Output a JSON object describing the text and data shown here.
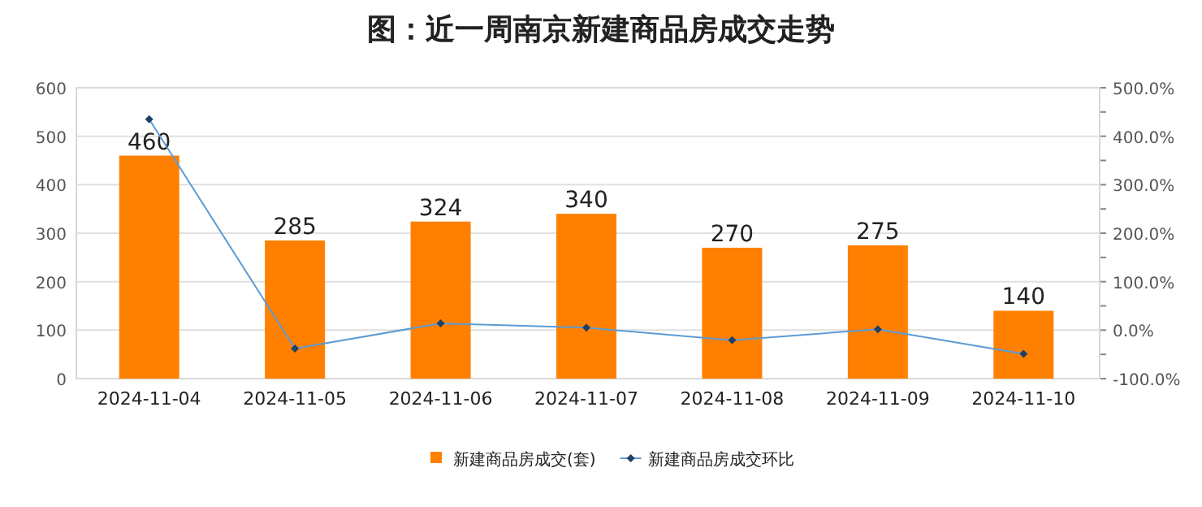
{
  "chart_data": {
    "type": "bar",
    "title": "图：近一周南京新建商品房成交走势",
    "categories": [
      "2024-11-04",
      "2024-11-05",
      "2024-11-06",
      "2024-11-07",
      "2024-11-08",
      "2024-11-09",
      "2024-11-10"
    ],
    "series": [
      {
        "name": "新建商品房成交(套)",
        "color": "#ff8000",
        "values": [
          460,
          285,
          324,
          340,
          270,
          275,
          140
        ],
        "value_labels": [
          "460",
          "285",
          "324",
          "340",
          "270",
          "275",
          "140"
        ]
      },
      {
        "name": "新建商品房成交环比",
        "type": "line",
        "axis": "y2",
        "color": "#5b9bd5",
        "marker": "diamond",
        "values": [
          435,
          -38,
          14,
          5,
          -21,
          2,
          -49
        ]
      }
    ],
    "ylim": [
      0,
      600
    ],
    "yticks": [
      0,
      100,
      200,
      300,
      400,
      500,
      600
    ],
    "y2lim": [
      -100,
      500
    ],
    "y2ticks": [
      {
        "value": -100,
        "label": "-100.0%"
      },
      {
        "value": -50,
        "label": null
      },
      {
        "value": 0,
        "label": "0.0%"
      },
      {
        "value": 50,
        "label": null
      },
      {
        "value": 100,
        "label": "100.0%"
      },
      {
        "value": 150,
        "label": null
      },
      {
        "value": 200,
        "label": "200.0%"
      },
      {
        "value": 250,
        "label": null
      },
      {
        "value": 300,
        "label": "300.0%"
      },
      {
        "value": 350,
        "label": null
      },
      {
        "value": 400,
        "label": "400.0%"
      },
      {
        "value": 450,
        "label": null
      },
      {
        "value": 500,
        "label": "500.0%"
      }
    ],
    "grid": "y",
    "legend": "bottom"
  }
}
